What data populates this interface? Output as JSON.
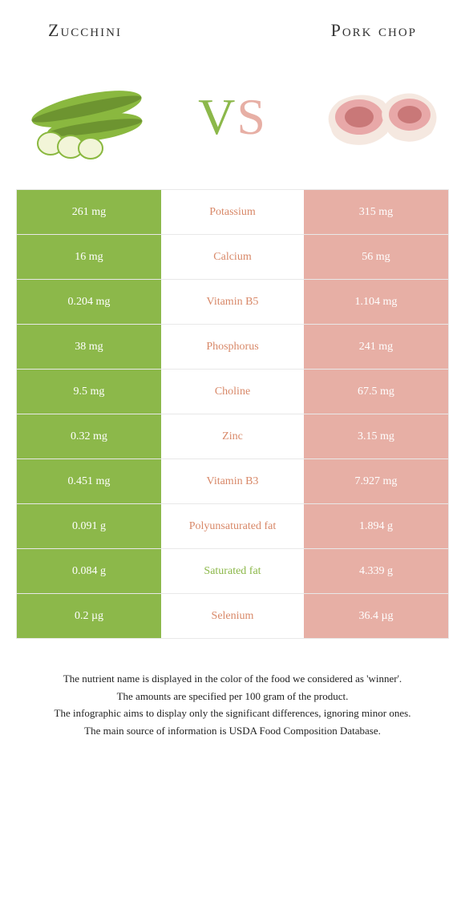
{
  "foods": {
    "left": {
      "title": "Zucchini",
      "color": "#8cb84a"
    },
    "right": {
      "title": "Pork chop",
      "color": "#e7afa5"
    }
  },
  "vs": {
    "v_color": "#8cb84a",
    "s_color": "#e7afa5",
    "text_v": "V",
    "text_s": "S"
  },
  "rows": [
    {
      "nutrient": "Potassium",
      "left": "261 mg",
      "right": "315 mg",
      "winner": "right"
    },
    {
      "nutrient": "Calcium",
      "left": "16 mg",
      "right": "56 mg",
      "winner": "right"
    },
    {
      "nutrient": "Vitamin B5",
      "left": "0.204 mg",
      "right": "1.104 mg",
      "winner": "right"
    },
    {
      "nutrient": "Phosphorus",
      "left": "38 mg",
      "right": "241 mg",
      "winner": "right"
    },
    {
      "nutrient": "Choline",
      "left": "9.5 mg",
      "right": "67.5 mg",
      "winner": "right"
    },
    {
      "nutrient": "Zinc",
      "left": "0.32 mg",
      "right": "3.15 mg",
      "winner": "right"
    },
    {
      "nutrient": "Vitamin B3",
      "left": "0.451 mg",
      "right": "7.927 mg",
      "winner": "right"
    },
    {
      "nutrient": "Polyunsaturated fat",
      "left": "0.091 g",
      "right": "1.894 g",
      "winner": "right"
    },
    {
      "nutrient": "Saturated fat",
      "left": "0.084 g",
      "right": "4.339 g",
      "winner": "left"
    },
    {
      "nutrient": "Selenium",
      "left": "0.2 µg",
      "right": "36.4 µg",
      "winner": "right"
    }
  ],
  "nutrient_colors": {
    "left_winner": "#8cb84a",
    "right_winner": "#d88868"
  },
  "footer": {
    "line1": "The nutrient name is displayed in the color of the food we considered as 'winner'.",
    "line2": "The amounts are specified per 100 gram of the product.",
    "line3": "The infographic aims to display only the significant differences, ignoring minor ones.",
    "line4": "The main source of information is USDA Food Composition Database."
  }
}
